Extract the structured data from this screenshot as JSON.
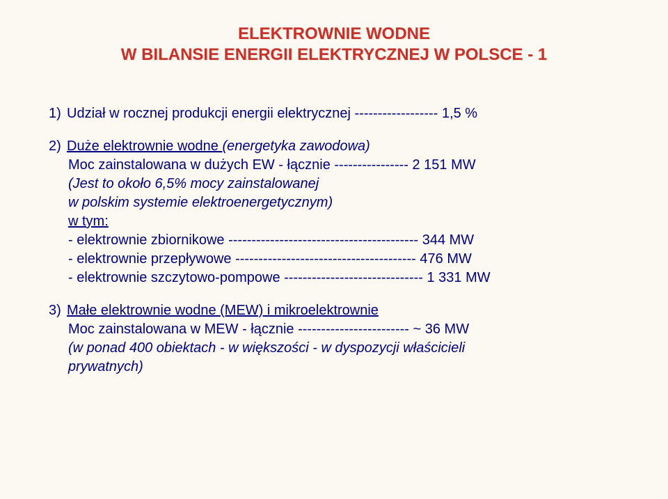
{
  "colors": {
    "background": "#fbf9f2",
    "title": "#c8302a",
    "body": "#00007c"
  },
  "typography": {
    "title_fontsize_pt": 18,
    "body_fontsize_pt": 15,
    "font_family": "Arial",
    "title_weight": "bold",
    "body_weight": "normal"
  },
  "title": {
    "line1": "ELEKTROWNIE WODNE",
    "line2": "W BILANSIE ENERGII ELEKTRYCZNEJ W POLSCE  -  1"
  },
  "items": [
    {
      "num": "1)",
      "text": "Udział w rocznej produkcji energii elektrycznej  ------------------   1,5 %"
    },
    {
      "num": "2)",
      "lead": "Duże elektrownie wodne  ",
      "lead_paren": "(energetyka zawodowa)",
      "moc_line": "Moc zainstalowana w dużych EW  -  łącznie ----------------  2 151 MW",
      "note1": "(Jest to około 6,5% mocy zainstalowanej",
      "note2": "w polskim systemie elektroenergetycznym)",
      "wtym": "w tym:",
      "sub": [
        "- elektrownie zbiornikowe  -----------------------------------------   344 MW",
        "- elektrownie przepływowe  ---------------------------------------   476 MW",
        "- elektrownie szczytowo-pompowe  ------------------------------ 1 331 MW"
      ]
    },
    {
      "num": "3)",
      "lead": "Małe elektrownie wodne  (MEW) i mikroelektrownie",
      "moc_line": "Moc zainstalowana w MEW  -  łącznie ------------------------   ~ 36 MW",
      "note1": "(w ponad 400 obiektach - w większości - w dyspozycji właścicieli",
      "note2": " prywatnych)"
    }
  ]
}
